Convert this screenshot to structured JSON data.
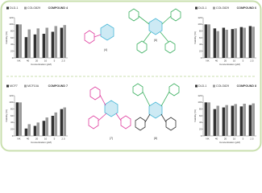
{
  "chart_data": [
    {
      "type": "bar",
      "title": "COMPOUND 4",
      "y_label": "Viability (%)",
      "x_label": "Concentration (μM)",
      "categories": [
        "NK",
        "40",
        "20",
        "10",
        "5",
        "2.5"
      ],
      "series": [
        {
          "name": "DLD-1",
          "color": "#333333",
          "values": [
            100,
            62,
            70,
            72,
            78,
            90
          ]
        },
        {
          "name": "COLO829",
          "color": "#9a9a9a",
          "values": [
            100,
            85,
            88,
            90,
            95,
            98
          ]
        }
      ],
      "ylim": [
        0,
        120
      ],
      "yticks": [
        0,
        20,
        40,
        60,
        80,
        100,
        120
      ]
    },
    {
      "type": "bar",
      "title": "COMPOUND 6",
      "y_label": "Viability (%)",
      "x_label": "Concentration (μM)",
      "categories": [
        "NK",
        "40",
        "20",
        "10",
        "5",
        "2.5"
      ],
      "series": [
        {
          "name": "DLD-1",
          "color": "#333333",
          "values": [
            100,
            88,
            90,
            86,
            92,
            95
          ]
        },
        {
          "name": "COLO829",
          "color": "#9a9a9a",
          "values": [
            100,
            80,
            84,
            88,
            90,
            93
          ]
        }
      ],
      "ylim": [
        0,
        120
      ],
      "yticks": [
        0,
        20,
        40,
        60,
        80,
        100,
        120
      ]
    },
    {
      "type": "bar",
      "title": "COMPOUND 7",
      "y_label": "Viability (%)",
      "x_label": "Concentration (μM)",
      "categories": [
        "NK",
        "40",
        "20",
        "10",
        "5",
        "2.5"
      ],
      "series": [
        {
          "name": "MCF7",
          "color": "#333333",
          "values": [
            100,
            22,
            30,
            45,
            60,
            80
          ]
        },
        {
          "name": "MCF10A",
          "color": "#9a9a9a",
          "values": [
            100,
            35,
            40,
            55,
            70,
            85
          ]
        }
      ],
      "ylim": [
        0,
        120
      ],
      "yticks": [
        0,
        20,
        40,
        60,
        80,
        100,
        120
      ]
    },
    {
      "type": "bar",
      "title": "COMPOUND 8",
      "y_label": "Viability (%)",
      "x_label": "Concentration (μM)",
      "categories": [
        "NK",
        "40",
        "20",
        "10",
        "5",
        "2.5"
      ],
      "series": [
        {
          "name": "DLD-1",
          "color": "#333333",
          "values": [
            100,
            80,
            85,
            90,
            88,
            92
          ]
        },
        {
          "name": "COLO829",
          "color": "#9a9a9a",
          "values": [
            100,
            90,
            92,
            95,
            96,
            97
          ]
        }
      ],
      "ylim": [
        0,
        120
      ],
      "yticks": [
        0,
        20,
        40,
        60,
        80,
        100,
        120
      ]
    }
  ],
  "structures": [
    {
      "label": "(4)"
    },
    {
      "label": "(6)"
    },
    {
      "label": "(7)"
    },
    {
      "label": "(8)"
    }
  ]
}
